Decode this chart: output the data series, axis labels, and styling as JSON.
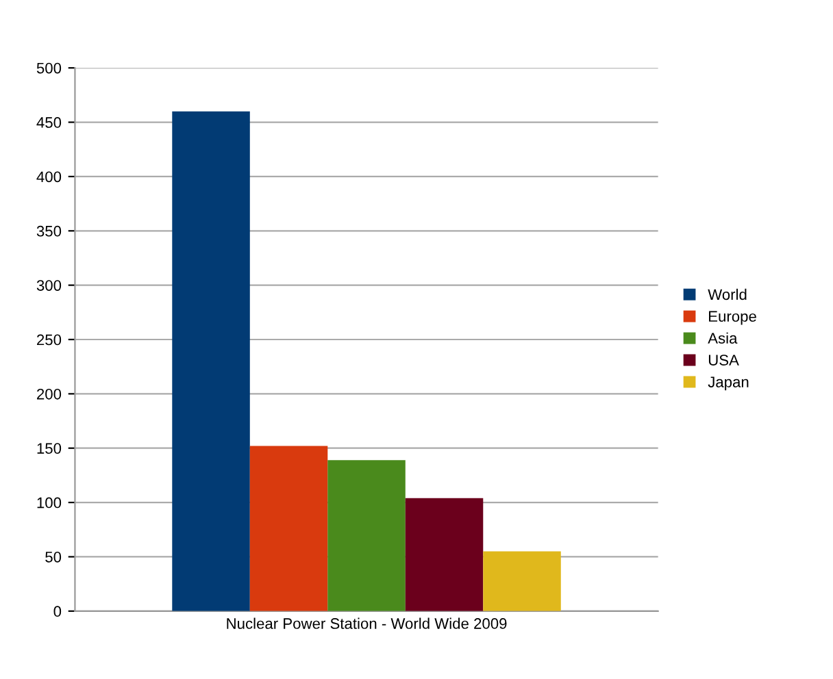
{
  "chart_data": {
    "type": "bar",
    "categories": [
      "Nuclear Power Station - World Wide 2009"
    ],
    "series": [
      {
        "name": "World",
        "color": "#023b74",
        "values": [
          460
        ]
      },
      {
        "name": "Europe",
        "color": "#d93a0e",
        "values": [
          152
        ]
      },
      {
        "name": "Asia",
        "color": "#4a8a1c",
        "values": [
          139
        ]
      },
      {
        "name": "USA",
        "color": "#6b001c",
        "values": [
          104
        ]
      },
      {
        "name": "Japan",
        "color": "#e0b81c",
        "values": [
          55
        ]
      }
    ],
    "ylim": [
      0,
      500
    ],
    "yticks": [
      0,
      50,
      100,
      150,
      200,
      250,
      300,
      350,
      400,
      450,
      500
    ],
    "grid": "y",
    "legend": "right"
  }
}
